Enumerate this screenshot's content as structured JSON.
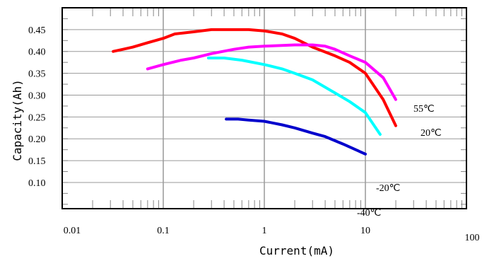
{
  "chart_data": {
    "type": "line",
    "title": "",
    "xlabel": "Current(mA)",
    "ylabel": "Capacity(Ah)",
    "x_scale": "log",
    "xlim": [
      0.01,
      100
    ],
    "ylim": [
      0.04,
      0.5
    ],
    "x_ticks": [
      "0.01",
      "0.1",
      "1",
      "10",
      "100"
    ],
    "y_ticks": [
      "0.10",
      "0.15",
      "0.20",
      "0.25",
      "0.30",
      "0.35",
      "0.40",
      "0.45"
    ],
    "grid": true,
    "series": [
      {
        "name": "20℃",
        "color": "#ff0000",
        "x": [
          0.032,
          0.04,
          0.05,
          0.07,
          0.1,
          0.13,
          0.2,
          0.3,
          0.5,
          0.7,
          1,
          1.5,
          2,
          3,
          5,
          7,
          10,
          15,
          20
        ],
        "y": [
          0.4,
          0.405,
          0.41,
          0.42,
          0.43,
          0.44,
          0.445,
          0.45,
          0.45,
          0.45,
          0.447,
          0.44,
          0.43,
          0.41,
          0.39,
          0.375,
          0.35,
          0.29,
          0.23
        ]
      },
      {
        "name": "55℃",
        "color": "#ff00ff",
        "x": [
          0.07,
          0.1,
          0.15,
          0.2,
          0.3,
          0.5,
          0.7,
          1,
          2,
          3,
          4,
          5,
          7,
          10,
          15,
          20
        ],
        "y": [
          0.36,
          0.37,
          0.38,
          0.385,
          0.395,
          0.405,
          0.41,
          0.412,
          0.415,
          0.415,
          0.412,
          0.405,
          0.39,
          0.375,
          0.34,
          0.29
        ]
      },
      {
        "name": "-20℃",
        "color": "#00ffff",
        "x": [
          0.28,
          0.4,
          0.6,
          1,
          1.5,
          2,
          3,
          5,
          7,
          10,
          14
        ],
        "y": [
          0.385,
          0.385,
          0.38,
          0.37,
          0.36,
          0.35,
          0.335,
          0.305,
          0.285,
          0.26,
          0.21
        ]
      },
      {
        "name": "-40℃",
        "color": "#0000cc",
        "x": [
          0.42,
          0.55,
          0.7,
          1,
          1.5,
          2,
          3,
          4,
          6,
          10
        ],
        "y": [
          0.245,
          0.245,
          0.243,
          0.24,
          0.232,
          0.225,
          0.213,
          0.205,
          0.188,
          0.165
        ]
      }
    ]
  }
}
